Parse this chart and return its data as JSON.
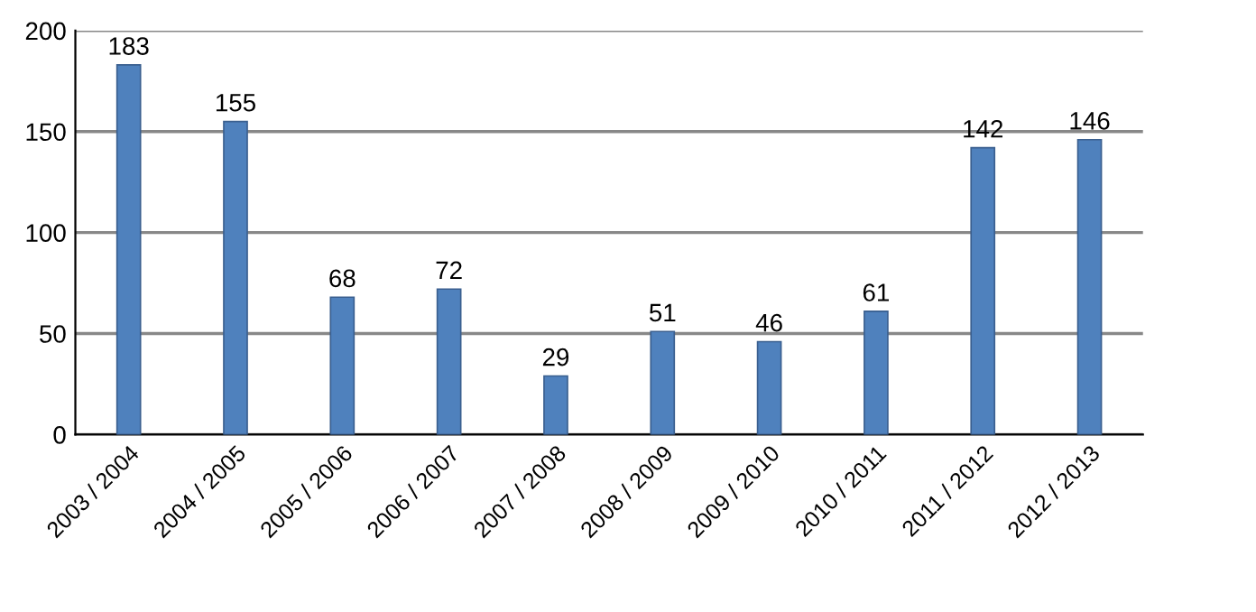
{
  "chart_data": {
    "type": "bar",
    "categories": [
      "2003 / 2004",
      "2004 / 2005",
      "2005 / 2006",
      "2006 / 2007",
      "2007 / 2008",
      "2008 / 2009",
      "2009 / 2010",
      "2010 / 2011",
      "2011 / 2012",
      "2012 / 2013"
    ],
    "values": [
      183,
      155,
      68,
      72,
      29,
      51,
      46,
      61,
      142,
      146
    ],
    "color": "#4f81bd",
    "ylim": [
      0,
      200
    ],
    "yticks": [
      0,
      50,
      100,
      150,
      200
    ],
    "grid": "y",
    "data_labels": true
  }
}
